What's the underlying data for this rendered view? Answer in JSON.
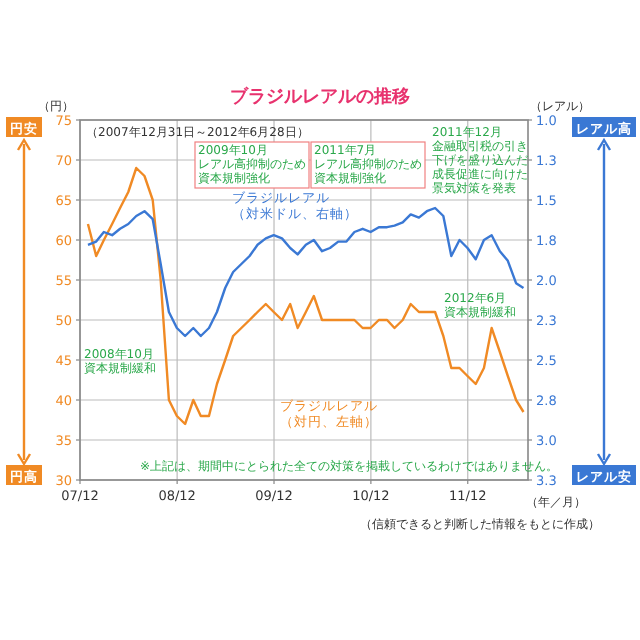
{
  "chart_data": {
    "type": "line",
    "title": "ブラジルレアルの推移",
    "subtitle": "（2007年12月31日～2012年6月28日）",
    "xlabel": "（年／月）",
    "ylabel": "（円）",
    "y2label": "（レアル）",
    "annotations": [
      "円安",
      "円高",
      "レアル高",
      "レアル安",
      "2008年10月資本規制緩和",
      "2009年10月レアル高抑制のため資本規制強化",
      "2011年7月レアル高抑制のため資本規制強化",
      "2011年12月金融取引税の引き下げを盛り込んだ成長促進に向けた景気対策を発表",
      "2012年6月資本規制緩和",
      "※上記は、期間中にとられた全ての対策を掲載しているわけではありません。",
      "（信頼できると判断した情報をもとに作成）"
    ],
    "x": [
      "2007-12-31",
      "2008-01-31",
      "2008-02-29",
      "2008-03-31",
      "2008-04-30",
      "2008-05-31",
      "2008-06-30",
      "2008-07-31",
      "2008-08-31",
      "2008-09-30",
      "2008-10-31",
      "2008-11-30",
      "2008-12-31",
      "2009-01-31",
      "2009-02-28",
      "2009-03-31",
      "2009-04-30",
      "2009-05-31",
      "2009-06-30",
      "2009-07-31",
      "2009-08-31",
      "2009-09-30",
      "2009-10-31",
      "2009-11-30",
      "2009-12-31",
      "2010-01-31",
      "2010-02-28",
      "2010-03-31",
      "2010-04-30",
      "2010-05-31",
      "2010-06-30",
      "2010-07-31",
      "2010-08-31",
      "2010-09-30",
      "2010-10-31",
      "2010-11-30",
      "2010-12-31",
      "2011-01-31",
      "2011-02-28",
      "2011-03-31",
      "2011-04-30",
      "2011-05-31",
      "2011-06-30",
      "2011-07-31",
      "2011-08-31",
      "2011-09-30",
      "2011-10-31",
      "2011-11-30",
      "2011-12-31",
      "2012-01-31",
      "2012-02-29",
      "2012-03-31",
      "2012-04-30",
      "2012-05-31",
      "2012-06-28"
    ],
    "series": [
      {
        "name": "ブラジルレアル（対米ドル、右軸）",
        "color": "#3a78d4",
        "axis": "y2",
        "values": [
          1.78,
          1.76,
          1.7,
          1.72,
          1.68,
          1.65,
          1.6,
          1.57,
          1.62,
          1.9,
          2.2,
          2.3,
          2.35,
          2.3,
          2.35,
          2.3,
          2.2,
          2.05,
          1.95,
          1.9,
          1.85,
          1.78,
          1.74,
          1.72,
          1.74,
          1.8,
          1.84,
          1.78,
          1.75,
          1.82,
          1.8,
          1.76,
          1.76,
          1.7,
          1.68,
          1.7,
          1.67,
          1.67,
          1.66,
          1.64,
          1.59,
          1.61,
          1.57,
          1.55,
          1.6,
          1.85,
          1.75,
          1.8,
          1.87,
          1.75,
          1.72,
          1.82,
          1.88,
          2.02,
          2.05
        ]
      },
      {
        "name": "ブラジルレアル（対円、左軸）",
        "color": "#f08a24",
        "values": [
          62,
          58,
          60,
          62,
          64,
          66,
          69,
          68,
          65,
          55,
          40,
          38,
          37,
          40,
          38,
          38,
          42,
          45,
          48,
          49,
          50,
          51,
          52,
          51,
          50,
          52,
          49,
          51,
          53,
          50,
          50,
          50,
          50,
          50,
          49,
          49,
          50,
          50,
          49,
          50,
          52,
          51,
          51,
          51,
          48,
          44,
          44,
          43,
          42,
          44,
          49,
          46,
          43,
          40,
          38.5
        ]
      }
    ],
    "xlim": [
      "2007-12-01",
      "2012-07-15"
    ],
    "xticks": [
      {
        "value": "2007-12-01",
        "label": "07/12"
      },
      {
        "value": "2008-12-01",
        "label": "08/12"
      },
      {
        "value": "2009-12-01",
        "label": "09/12"
      },
      {
        "value": "2010-12-01",
        "label": "10/12"
      },
      {
        "value": "2011-12-01",
        "label": "11/12"
      }
    ],
    "ylim": [
      30,
      75
    ],
    "yticks": [
      30,
      35,
      40,
      45,
      50,
      55,
      60,
      65,
      70,
      75
    ],
    "y2lim": [
      3.25,
      1.0
    ],
    "y2ticks": [
      {
        "value": 1.0,
        "label": "1.0"
      },
      {
        "value": 1.25,
        "label": "1.3"
      },
      {
        "value": 1.5,
        "label": "1.5"
      },
      {
        "value": 1.75,
        "label": "1.8"
      },
      {
        "value": 2.0,
        "label": "2.0"
      },
      {
        "value": 2.25,
        "label": "2.3"
      },
      {
        "value": 2.5,
        "label": "2.5"
      },
      {
        "value": 2.75,
        "label": "2.8"
      },
      {
        "value": 3.0,
        "label": "3.0"
      },
      {
        "value": 3.25,
        "label": "3.3"
      }
    ],
    "grid": true
  }
}
